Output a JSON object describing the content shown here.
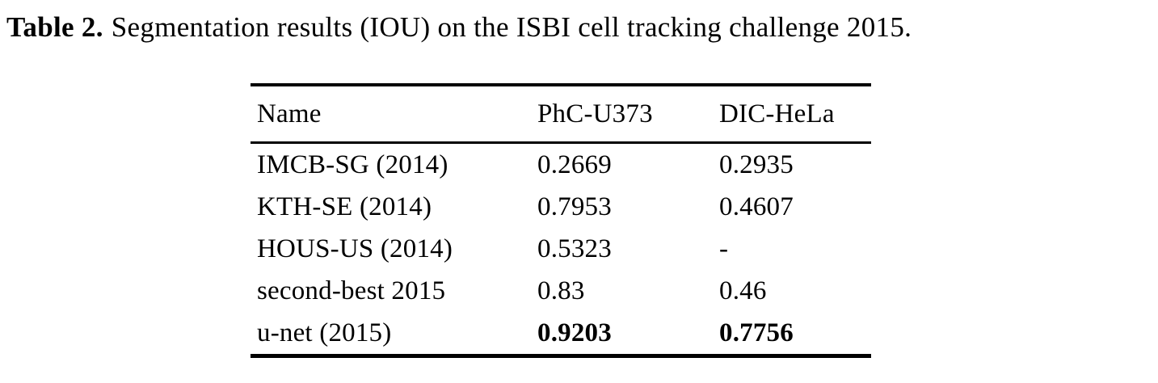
{
  "caption": {
    "label": "Table 2.",
    "text": "Segmentation results (IOU) on the ISBI cell tracking challenge 2015."
  },
  "table": {
    "columns": {
      "name": "Name",
      "phc_u373": "PhC-U373",
      "dic_hela": "DIC-HeLa"
    },
    "rows": [
      {
        "name": "IMCB-SG (2014)",
        "phc_u373": "0.2669",
        "dic_hela": "0.2935"
      },
      {
        "name": "KTH-SE (2014)",
        "phc_u373": "0.7953",
        "dic_hela": "0.4607"
      },
      {
        "name": "HOUS-US (2014)",
        "phc_u373": "0.5323",
        "dic_hela": "-"
      },
      {
        "name": "second-best 2015",
        "phc_u373": "0.83",
        "dic_hela": "0.46"
      },
      {
        "name": "u-net (2015)",
        "phc_u373": "0.9203",
        "dic_hela": "0.7756"
      }
    ],
    "best_row_index": 4
  },
  "colors": {
    "text": "#000000",
    "background": "#ffffff",
    "rule": "#000000"
  }
}
